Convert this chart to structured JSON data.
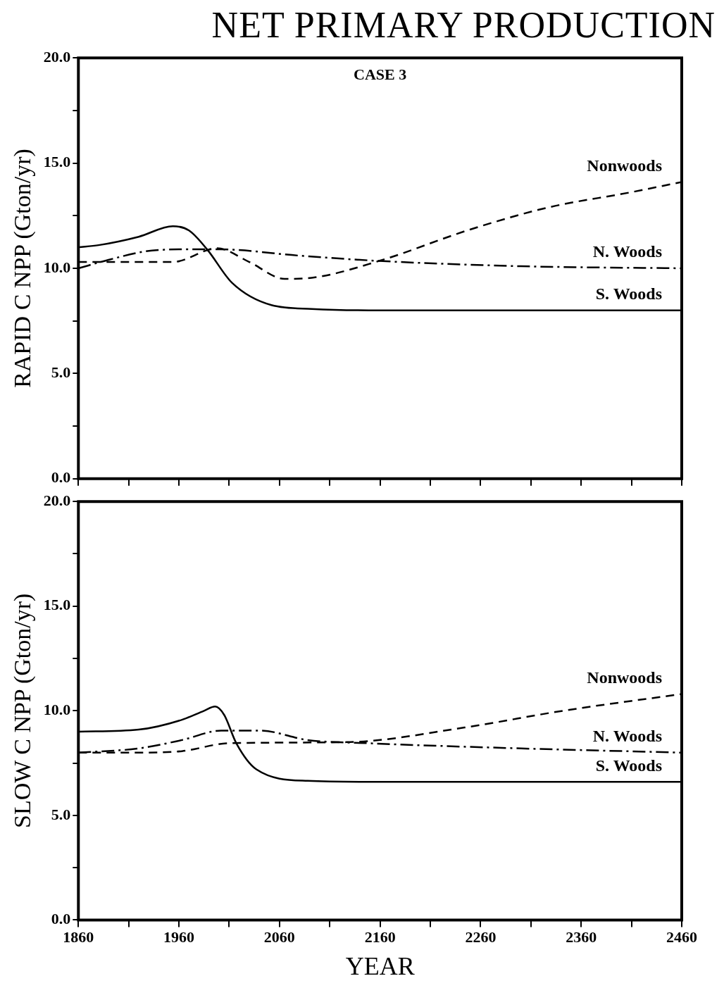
{
  "chart_data": [
    {
      "type": "line",
      "title": "NET PRIMARY PRODUCTION",
      "ylabel": "RAPID C NPP (Gton/yr)",
      "annotations": [
        "CASE 3"
      ],
      "xlim": [
        1860,
        2460
      ],
      "xticks": [
        {
          "value": 1860,
          "label": null
        },
        {
          "value": 1910,
          "label": null
        },
        {
          "value": 1960,
          "label": null
        },
        {
          "value": 2010,
          "label": null
        },
        {
          "value": 2060,
          "label": null
        },
        {
          "value": 2110,
          "label": null
        },
        {
          "value": 2160,
          "label": null
        },
        {
          "value": 2210,
          "label": null
        },
        {
          "value": 2260,
          "label": null
        },
        {
          "value": 2310,
          "label": null
        },
        {
          "value": 2360,
          "label": null
        },
        {
          "value": 2410,
          "label": null
        },
        {
          "value": 2460,
          "label": null
        }
      ],
      "ylim": [
        0,
        20
      ],
      "yticks": [
        {
          "value": 0,
          "label": "0.0"
        },
        {
          "value": 2.5,
          "label": null
        },
        {
          "value": 5,
          "label": "5.0"
        },
        {
          "value": 7.5,
          "label": null
        },
        {
          "value": 10,
          "label": "10.0"
        },
        {
          "value": 12.5,
          "label": null
        },
        {
          "value": 15,
          "label": "15.0"
        },
        {
          "value": 17.5,
          "label": null
        },
        {
          "value": 20,
          "label": "20.0"
        }
      ],
      "tick_labels": "y",
      "grid": false,
      "legend": false,
      "marker": "none",
      "series": [
        {
          "name": "Nonwoods",
          "color": "#000000",
          "line_style": "dashed",
          "x": [
            1860,
            1900,
            1954,
            1998,
            2030,
            2065,
            2092,
            2159,
            2250,
            2328,
            2408,
            2460
          ],
          "values": [
            10.3,
            10.3,
            10.3,
            10.95,
            10.3,
            9.5,
            9.55,
            10.35,
            11.85,
            12.9,
            13.6,
            14.1
          ]
        },
        {
          "name": "N. Woods",
          "color": "#000000",
          "line_style": "dashdot",
          "x": [
            1860,
            1890,
            1926,
            1960,
            2000,
            2080,
            2159,
            2300,
            2460
          ],
          "values": [
            10.0,
            10.4,
            10.8,
            10.9,
            10.9,
            10.6,
            10.35,
            10.1,
            10.0
          ]
        },
        {
          "name": "S. Woods",
          "color": "#000000",
          "line_style": "solid",
          "x": [
            1860,
            1880,
            1920,
            1954,
            1970,
            1988,
            2013,
            2052,
            2092,
            2160,
            2460
          ],
          "values": [
            11.0,
            11.1,
            11.5,
            12.0,
            11.8,
            10.9,
            9.3,
            8.25,
            8.07,
            8.0,
            8.0
          ]
        }
      ]
    },
    {
      "type": "line",
      "xlabel": "YEAR",
      "ylabel": "SLOW C NPP (Gton/yr)",
      "xlim": [
        1860,
        2460
      ],
      "xticks": [
        1860,
        {
          "value": 1910,
          "label": null
        },
        1960,
        {
          "value": 2010,
          "label": null
        },
        2060,
        {
          "value": 2110,
          "label": null
        },
        2160,
        {
          "value": 2210,
          "label": null
        },
        2260,
        {
          "value": 2310,
          "label": null
        },
        2360,
        {
          "value": 2410,
          "label": null
        },
        2460
      ],
      "ylim": [
        0,
        20
      ],
      "yticks": [
        {
          "value": 0,
          "label": "0.0"
        },
        {
          "value": 2.5,
          "label": null
        },
        {
          "value": 5,
          "label": "5.0"
        },
        {
          "value": 7.5,
          "label": null
        },
        {
          "value": 10,
          "label": "10.0"
        },
        {
          "value": 12.5,
          "label": null
        },
        {
          "value": 15,
          "label": "15.0"
        },
        {
          "value": 17.5,
          "label": null
        },
        {
          "value": 20,
          "label": "20.0"
        }
      ],
      "grid": false,
      "legend": false,
      "marker": "none",
      "series": [
        {
          "name": "Nonwoods",
          "color": "#000000",
          "line_style": "dashed",
          "x": [
            1860,
            1920,
            1963,
            2010,
            2127,
            2244,
            2342,
            2460
          ],
          "values": [
            8.0,
            8.0,
            8.07,
            8.45,
            8.5,
            9.2,
            10.0,
            10.8
          ]
        },
        {
          "name": "N. Woods",
          "color": "#000000",
          "line_style": "dashdot",
          "x": [
            1860,
            1920,
            1963,
            2002,
            2041,
            2088,
            2147,
            2300,
            2460
          ],
          "values": [
            8.0,
            8.2,
            8.6,
            9.05,
            9.05,
            8.6,
            8.45,
            8.2,
            8.0
          ]
        },
        {
          "name": "S. Woods",
          "color": "#000000",
          "line_style": "solid",
          "x": [
            1860,
            1920,
            1963,
            1985,
            1996,
            2005,
            2017,
            2037,
            2088,
            2160,
            2460
          ],
          "values": [
            9.0,
            9.1,
            9.57,
            10.0,
            10.2,
            9.8,
            8.45,
            7.2,
            6.65,
            6.6,
            6.6
          ]
        }
      ]
    }
  ]
}
